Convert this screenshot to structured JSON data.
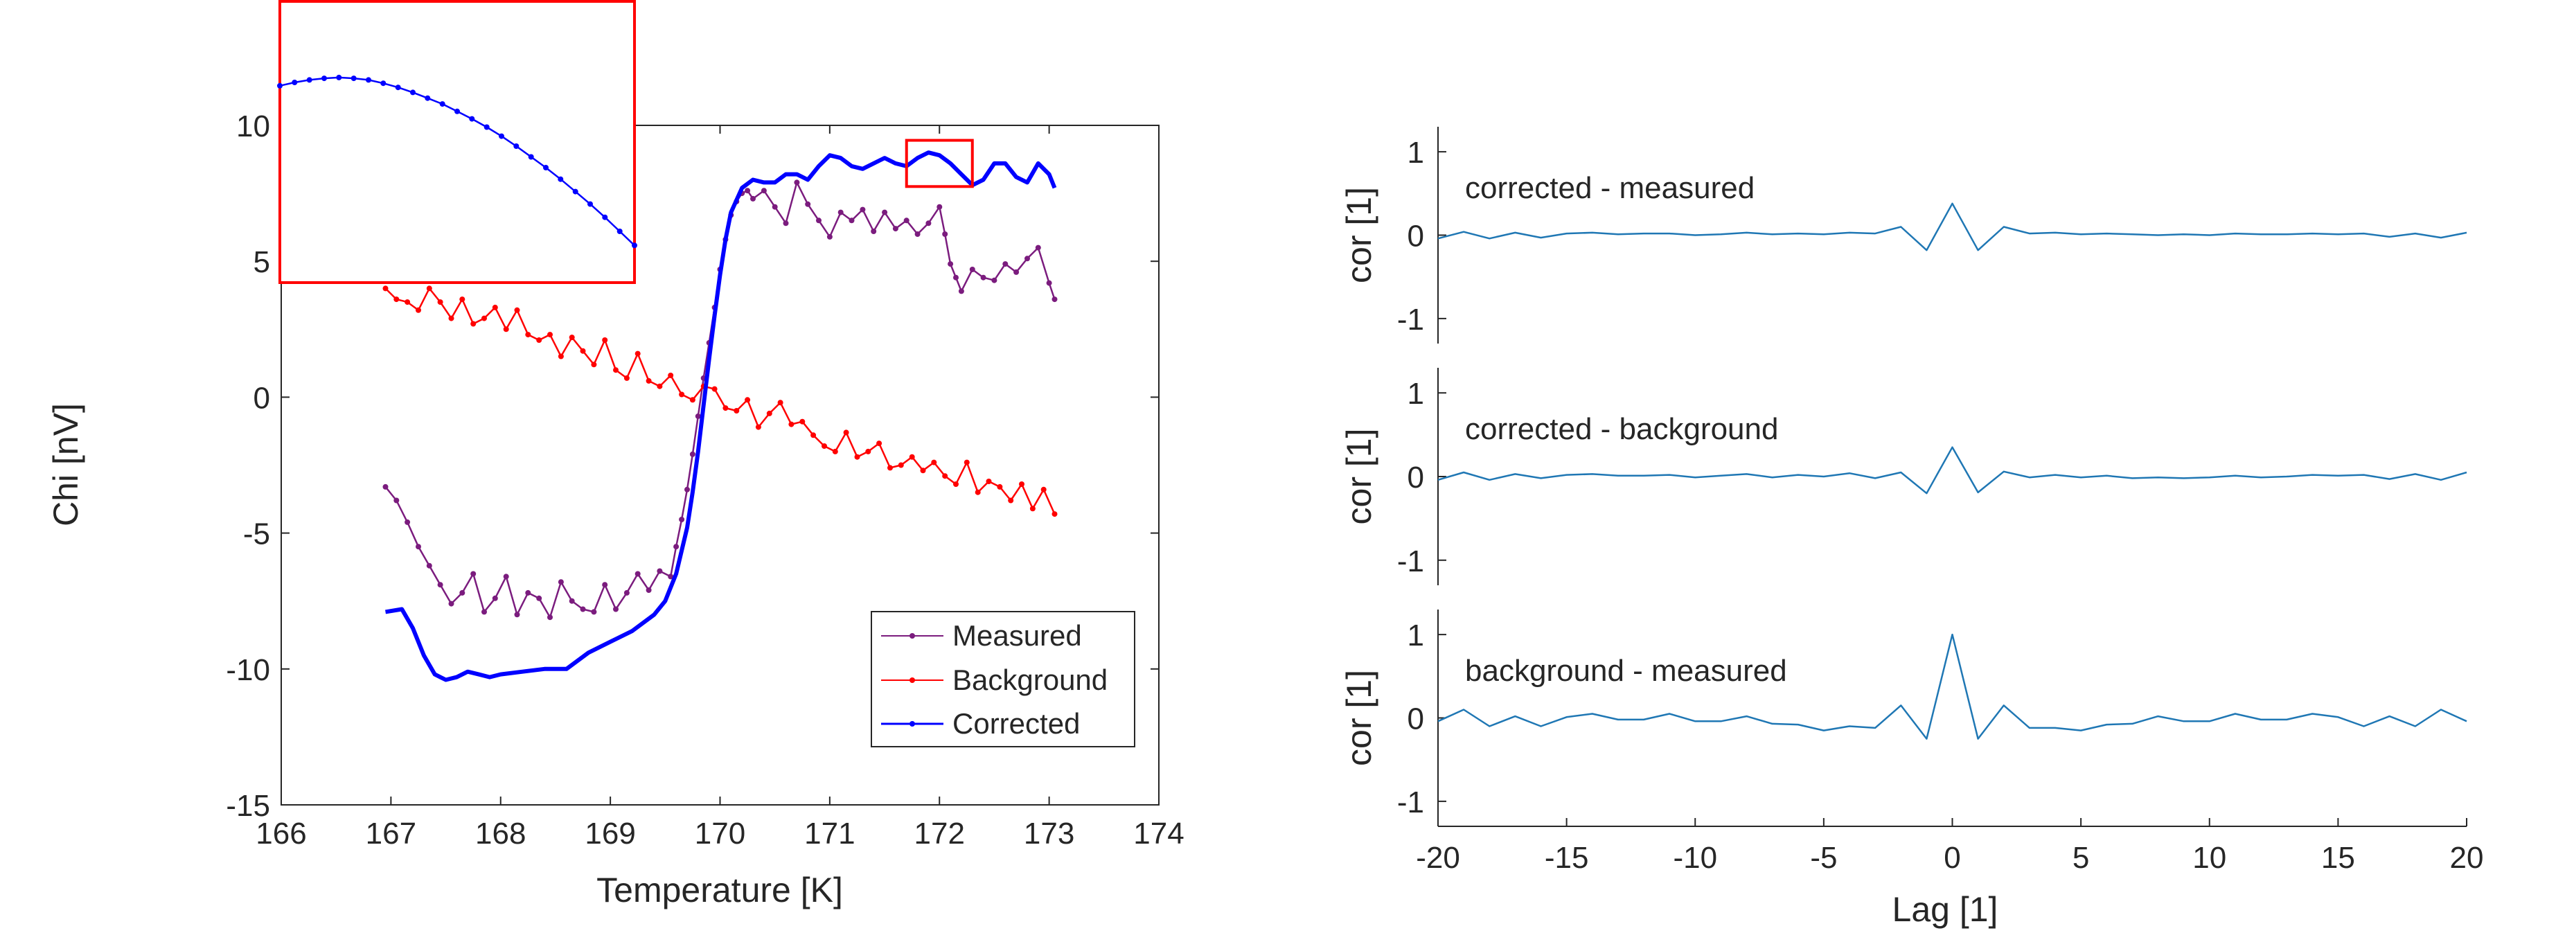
{
  "chart_data": [
    {
      "type": "line",
      "xlabel": "Temperature [K]",
      "ylabel": "Chi [nV]",
      "xlim": [
        166,
        174
      ],
      "ylim": [
        -15,
        10
      ],
      "xticks": [
        166,
        167,
        168,
        169,
        170,
        171,
        172,
        173,
        174
      ],
      "yticks": [
        -15,
        -10,
        -5,
        0,
        5,
        10
      ],
      "xtick_labels": [
        "166",
        "167",
        "168",
        "169",
        "170",
        "171",
        "172",
        "173",
        "174"
      ],
      "ytick_labels": [
        "-15",
        "-10",
        "-5",
        "0",
        "5",
        "10"
      ],
      "legend_position": "bottom-right",
      "grid": false,
      "series": [
        {
          "name": "Measured",
          "color": "#7B1C7E",
          "marker": "dot",
          "x": [
            166.95,
            167.05,
            167.15,
            167.25,
            167.35,
            167.45,
            167.55,
            167.65,
            167.75,
            167.85,
            167.95,
            168.05,
            168.15,
            168.25,
            168.35,
            168.45,
            168.55,
            168.65,
            168.75,
            168.85,
            168.95,
            169.05,
            169.15,
            169.25,
            169.35,
            169.45,
            169.55,
            169.6,
            169.65,
            169.7,
            169.75,
            169.8,
            169.85,
            169.9,
            169.95,
            170.0,
            170.05,
            170.1,
            170.15,
            170.2,
            170.25,
            170.3,
            170.4,
            170.5,
            170.6,
            170.7,
            170.8,
            170.9,
            171.0,
            171.1,
            171.2,
            171.3,
            171.4,
            171.5,
            171.6,
            171.7,
            171.8,
            171.9,
            172.0,
            172.05,
            172.1,
            172.15,
            172.2,
            172.3,
            172.4,
            172.5,
            172.6,
            172.7,
            172.8,
            172.9,
            173.0,
            173.05
          ],
          "y": [
            -3.3,
            -3.8,
            -4.6,
            -5.5,
            -6.2,
            -6.9,
            -7.6,
            -7.2,
            -6.5,
            -7.9,
            -7.4,
            -6.6,
            -8.0,
            -7.2,
            -7.4,
            -8.1,
            -6.8,
            -7.5,
            -7.8,
            -7.9,
            -6.9,
            -7.8,
            -7.2,
            -6.5,
            -7.1,
            -6.4,
            -6.6,
            -5.5,
            -4.5,
            -3.4,
            -2.1,
            -0.7,
            0.7,
            2.0,
            3.3,
            4.7,
            5.8,
            6.7,
            7.2,
            7.5,
            7.6,
            7.3,
            7.6,
            7.0,
            6.4,
            7.9,
            7.1,
            6.5,
            5.9,
            6.8,
            6.5,
            6.9,
            6.1,
            6.8,
            6.2,
            6.5,
            6.0,
            6.4,
            7.0,
            6.0,
            4.9,
            4.4,
            3.9,
            4.7,
            4.4,
            4.3,
            4.9,
            4.6,
            5.1,
            5.5,
            4.2,
            3.6
          ]
        },
        {
          "name": "Background",
          "color": "#FF0000",
          "marker": "dot",
          "x": [
            166.95,
            167.05,
            167.15,
            167.25,
            167.35,
            167.45,
            167.55,
            167.65,
            167.75,
            167.85,
            167.95,
            168.05,
            168.15,
            168.25,
            168.35,
            168.45,
            168.55,
            168.65,
            168.75,
            168.85,
            168.95,
            169.05,
            169.15,
            169.25,
            169.35,
            169.45,
            169.55,
            169.65,
            169.75,
            169.85,
            169.95,
            170.05,
            170.15,
            170.25,
            170.35,
            170.45,
            170.55,
            170.65,
            170.75,
            170.85,
            170.95,
            171.05,
            171.15,
            171.25,
            171.35,
            171.45,
            171.55,
            171.65,
            171.75,
            171.85,
            171.95,
            172.05,
            172.15,
            172.25,
            172.35,
            172.45,
            172.55,
            172.65,
            172.75,
            172.85,
            172.95,
            173.05
          ],
          "y": [
            4.0,
            3.6,
            3.5,
            3.2,
            4.0,
            3.5,
            2.9,
            3.6,
            2.7,
            2.9,
            3.3,
            2.5,
            3.2,
            2.3,
            2.1,
            2.3,
            1.5,
            2.2,
            1.7,
            1.2,
            2.1,
            1.0,
            0.7,
            1.6,
            0.6,
            0.4,
            0.8,
            0.1,
            -0.1,
            0.4,
            0.3,
            -0.4,
            -0.5,
            -0.1,
            -1.1,
            -0.6,
            -0.2,
            -1.0,
            -0.9,
            -1.4,
            -1.8,
            -2.0,
            -1.3,
            -2.2,
            -2.0,
            -1.7,
            -2.6,
            -2.5,
            -2.2,
            -2.7,
            -2.4,
            -2.9,
            -3.2,
            -2.4,
            -3.5,
            -3.1,
            -3.3,
            -3.8,
            -3.2,
            -4.1,
            -3.4,
            -4.3
          ]
        },
        {
          "name": "Corrected",
          "color": "#0000FF",
          "marker": "none",
          "x": [
            166.95,
            167.1,
            167.2,
            167.3,
            167.4,
            167.5,
            167.6,
            167.7,
            167.8,
            167.9,
            168.0,
            168.2,
            168.4,
            168.6,
            168.8,
            169.0,
            169.2,
            169.4,
            169.5,
            169.6,
            169.7,
            169.75,
            169.8,
            169.85,
            169.9,
            169.95,
            170.0,
            170.05,
            170.1,
            170.2,
            170.3,
            170.4,
            170.5,
            170.6,
            170.7,
            170.8,
            170.9,
            171.0,
            171.1,
            171.2,
            171.3,
            171.4,
            171.5,
            171.6,
            171.7,
            171.8,
            171.9,
            172.0,
            172.1,
            172.2,
            172.3,
            172.4,
            172.5,
            172.6,
            172.7,
            172.8,
            172.9,
            173.0,
            173.05
          ],
          "y": [
            -7.9,
            -7.8,
            -8.5,
            -9.5,
            -10.2,
            -10.4,
            -10.3,
            -10.1,
            -10.2,
            -10.3,
            -10.2,
            -10.1,
            -10.0,
            -10.0,
            -9.4,
            -9.0,
            -8.6,
            -8.0,
            -7.5,
            -6.5,
            -4.8,
            -3.5,
            -2.0,
            -0.3,
            1.4,
            3.0,
            4.5,
            5.8,
            6.8,
            7.7,
            8.0,
            7.9,
            7.9,
            8.2,
            8.2,
            8.0,
            8.5,
            8.9,
            8.8,
            8.5,
            8.4,
            8.6,
            8.8,
            8.6,
            8.5,
            8.8,
            9.0,
            8.9,
            8.6,
            8.2,
            7.8,
            8.0,
            8.6,
            8.6,
            8.1,
            7.9,
            8.6,
            8.2,
            7.7
          ]
        }
      ]
    },
    {
      "type": "line",
      "title": "corrected - measured",
      "ylabel": "cor [1]",
      "xlim": [
        -20,
        20
      ],
      "ylim": [
        -1.3,
        1.3
      ],
      "yticks": [
        -1,
        0,
        1
      ],
      "ytick_labels": [
        "-1",
        "0",
        "1"
      ],
      "color": "#1F77B4",
      "x": [
        -20,
        -19,
        -18,
        -17,
        -16,
        -15,
        -14,
        -13,
        -12,
        -11,
        -10,
        -9,
        -8,
        -7,
        -6,
        -5,
        -4,
        -3,
        -2,
        -1,
        0,
        1,
        2,
        3,
        4,
        5,
        6,
        7,
        8,
        9,
        10,
        11,
        12,
        13,
        14,
        15,
        16,
        17,
        18,
        19,
        20
      ],
      "y": [
        -0.04,
        0.04,
        -0.04,
        0.03,
        -0.03,
        0.02,
        0.03,
        0.01,
        0.02,
        0.02,
        0.0,
        0.01,
        0.03,
        0.01,
        0.02,
        0.01,
        0.03,
        0.02,
        0.1,
        -0.18,
        0.38,
        -0.18,
        0.1,
        0.02,
        0.03,
        0.01,
        0.02,
        0.01,
        0.0,
        0.01,
        0.0,
        0.02,
        0.01,
        0.01,
        0.02,
        0.01,
        0.02,
        -0.02,
        0.02,
        -0.03,
        0.03
      ]
    },
    {
      "type": "line",
      "title": "corrected - background",
      "ylabel": "cor [1]",
      "xlim": [
        -20,
        20
      ],
      "ylim": [
        -1.3,
        1.3
      ],
      "yticks": [
        -1,
        0,
        1
      ],
      "ytick_labels": [
        "-1",
        "0",
        "1"
      ],
      "color": "#1F77B4",
      "x": [
        -20,
        -19,
        -18,
        -17,
        -16,
        -15,
        -14,
        -13,
        -12,
        -11,
        -10,
        -9,
        -8,
        -7,
        -6,
        -5,
        -4,
        -3,
        -2,
        -1,
        0,
        1,
        2,
        3,
        4,
        5,
        6,
        7,
        8,
        9,
        10,
        11,
        12,
        13,
        14,
        15,
        16,
        17,
        18,
        19,
        20
      ],
      "y": [
        -0.04,
        0.05,
        -0.04,
        0.03,
        -0.02,
        0.02,
        0.03,
        0.01,
        0.01,
        0.02,
        -0.01,
        0.01,
        0.03,
        -0.01,
        0.02,
        0.0,
        0.04,
        -0.02,
        0.05,
        -0.2,
        0.35,
        -0.19,
        0.06,
        -0.01,
        0.02,
        -0.01,
        0.01,
        -0.02,
        -0.01,
        -0.02,
        -0.01,
        0.01,
        -0.01,
        0.0,
        0.02,
        0.01,
        0.02,
        -0.03,
        0.03,
        -0.04,
        0.05
      ]
    },
    {
      "type": "line",
      "title": "background - measured",
      "ylabel": "cor [1]",
      "xlabel": "Lag [1]",
      "xlim": [
        -20,
        20
      ],
      "ylim": [
        -1.3,
        1.3
      ],
      "xticks": [
        -20,
        -15,
        -10,
        -5,
        0,
        5,
        10,
        15,
        20
      ],
      "xtick_labels": [
        "-20",
        "-15",
        "-10",
        "-5",
        "0",
        "5",
        "10",
        "15",
        "20"
      ],
      "yticks": [
        -1,
        0,
        1
      ],
      "ytick_labels": [
        "-1",
        "0",
        "1"
      ],
      "color": "#1F77B4",
      "x": [
        -20,
        -19,
        -18,
        -17,
        -16,
        -15,
        -14,
        -13,
        -12,
        -11,
        -10,
        -9,
        -8,
        -7,
        -6,
        -5,
        -4,
        -3,
        -2,
        -1,
        0,
        1,
        2,
        3,
        4,
        5,
        6,
        7,
        8,
        9,
        10,
        11,
        12,
        13,
        14,
        15,
        16,
        17,
        18,
        19,
        20
      ],
      "y": [
        -0.04,
        0.1,
        -0.1,
        0.02,
        -0.1,
        0.01,
        0.05,
        -0.02,
        -0.02,
        0.05,
        -0.04,
        -0.04,
        0.02,
        -0.07,
        -0.08,
        -0.15,
        -0.1,
        -0.12,
        0.15,
        -0.25,
        1.0,
        -0.25,
        0.15,
        -0.12,
        -0.12,
        -0.15,
        -0.08,
        -0.07,
        0.02,
        -0.04,
        -0.04,
        0.05,
        -0.02,
        -0.02,
        0.05,
        0.01,
        -0.1,
        0.02,
        -0.1,
        0.1,
        -0.04
      ]
    }
  ],
  "inset": {
    "source_xlim": [
      171.7,
      172.3
    ],
    "source_ylim": [
      7.75,
      9.45
    ],
    "box_color": "#FF0000",
    "series_color": "#0000FF",
    "x": [
      171.7,
      171.725,
      171.75,
      171.775,
      171.8,
      171.825,
      171.85,
      171.875,
      171.9,
      171.925,
      171.95,
      171.975,
      172.0,
      172.025,
      172.05,
      172.075,
      172.1,
      172.125,
      172.15,
      172.175,
      172.2,
      172.225,
      172.25,
      172.275,
      172.3
    ],
    "y": [
      8.94,
      8.96,
      8.975,
      8.985,
      8.99,
      8.985,
      8.975,
      8.955,
      8.93,
      8.9,
      8.865,
      8.83,
      8.785,
      8.74,
      8.69,
      8.635,
      8.575,
      8.51,
      8.445,
      8.375,
      8.3,
      8.225,
      8.145,
      8.06,
      7.975
    ]
  }
}
